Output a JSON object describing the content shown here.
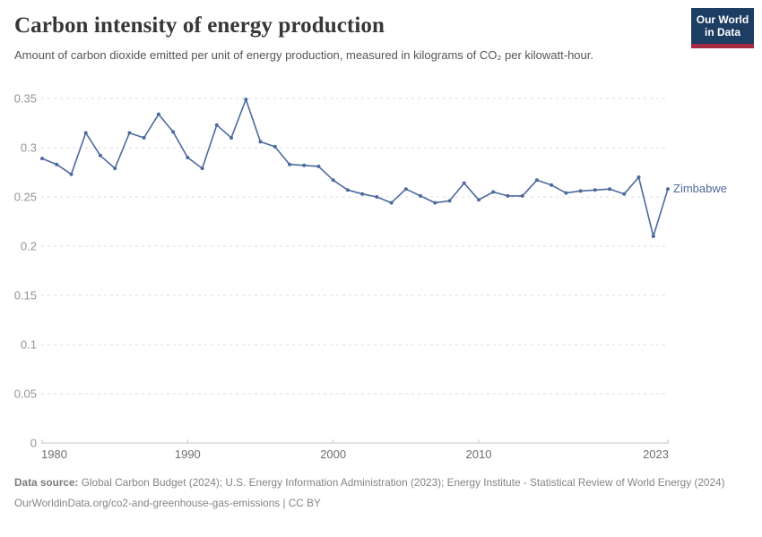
{
  "header": {
    "title": "Carbon intensity of energy production",
    "subtitle": "Amount of carbon dioxide emitted per unit of energy production, measured in kilograms of CO₂ per kilowatt-hour."
  },
  "logo": {
    "line1": "Our World",
    "line2": "in Data"
  },
  "colors": {
    "series_blue": "#4c6a9c",
    "logo_navy": "#1d3d63",
    "logo_red": "#a52b44",
    "gridline": "#dcdcdc",
    "axis": "#c4c4c4"
  },
  "chart_data": {
    "type": "line",
    "title": "Carbon intensity of energy production",
    "xlabel": "",
    "ylabel": "kilograms of CO₂ per kilowatt-hour",
    "xlim": [
      1980,
      2023
    ],
    "ylim": [
      0,
      0.35
    ],
    "grid": "horizontal-dashed",
    "legend_position": "end-of-line-label",
    "x_ticks": [
      {
        "v": 1980,
        "label": "1980"
      },
      {
        "v": 1990,
        "label": "1990"
      },
      {
        "v": 2000,
        "label": "2000"
      },
      {
        "v": 2010,
        "label": "2010"
      },
      {
        "v": 2023,
        "label": "2023"
      }
    ],
    "y_ticks": [
      {
        "v": 0,
        "label": "0"
      },
      {
        "v": 0.05,
        "label": "0.05"
      },
      {
        "v": 0.1,
        "label": "0.1"
      },
      {
        "v": 0.15,
        "label": "0.15"
      },
      {
        "v": 0.2,
        "label": "0.2"
      },
      {
        "v": 0.25,
        "label": "0.25"
      },
      {
        "v": 0.3,
        "label": "0.3"
      },
      {
        "v": 0.35,
        "label": "0.35"
      }
    ],
    "series": [
      {
        "name": "Zimbabwe",
        "color": "#4c6a9c",
        "x": [
          1980,
          1981,
          1982,
          1983,
          1984,
          1985,
          1986,
          1987,
          1988,
          1989,
          1990,
          1991,
          1992,
          1993,
          1994,
          1995,
          1996,
          1997,
          1998,
          1999,
          2000,
          2001,
          2002,
          2003,
          2004,
          2005,
          2006,
          2007,
          2008,
          2009,
          2010,
          2011,
          2012,
          2013,
          2014,
          2015,
          2016,
          2017,
          2018,
          2019,
          2020,
          2021,
          2022,
          2023
        ],
        "values": [
          0.289,
          0.283,
          0.273,
          0.315,
          0.292,
          0.279,
          0.315,
          0.31,
          0.334,
          0.316,
          0.29,
          0.279,
          0.323,
          0.31,
          0.349,
          0.306,
          0.301,
          0.283,
          0.282,
          0.281,
          0.267,
          0.257,
          0.253,
          0.25,
          0.244,
          0.258,
          0.251,
          0.244,
          0.246,
          0.264,
          0.247,
          0.255,
          0.251,
          0.251,
          0.267,
          0.262,
          0.254,
          0.256,
          0.257,
          0.258,
          0.253,
          0.27,
          0.21,
          0.258
        ]
      }
    ]
  },
  "footer": {
    "source_label": "Data source:",
    "source_text": " Global Carbon Budget (2024); U.S. Energy Information Administration (2023); Energy Institute - Statistical Review of World Energy (2024)",
    "link_text": "OurWorldinData.org/co2-and-greenhouse-gas-emissions | CC BY"
  }
}
